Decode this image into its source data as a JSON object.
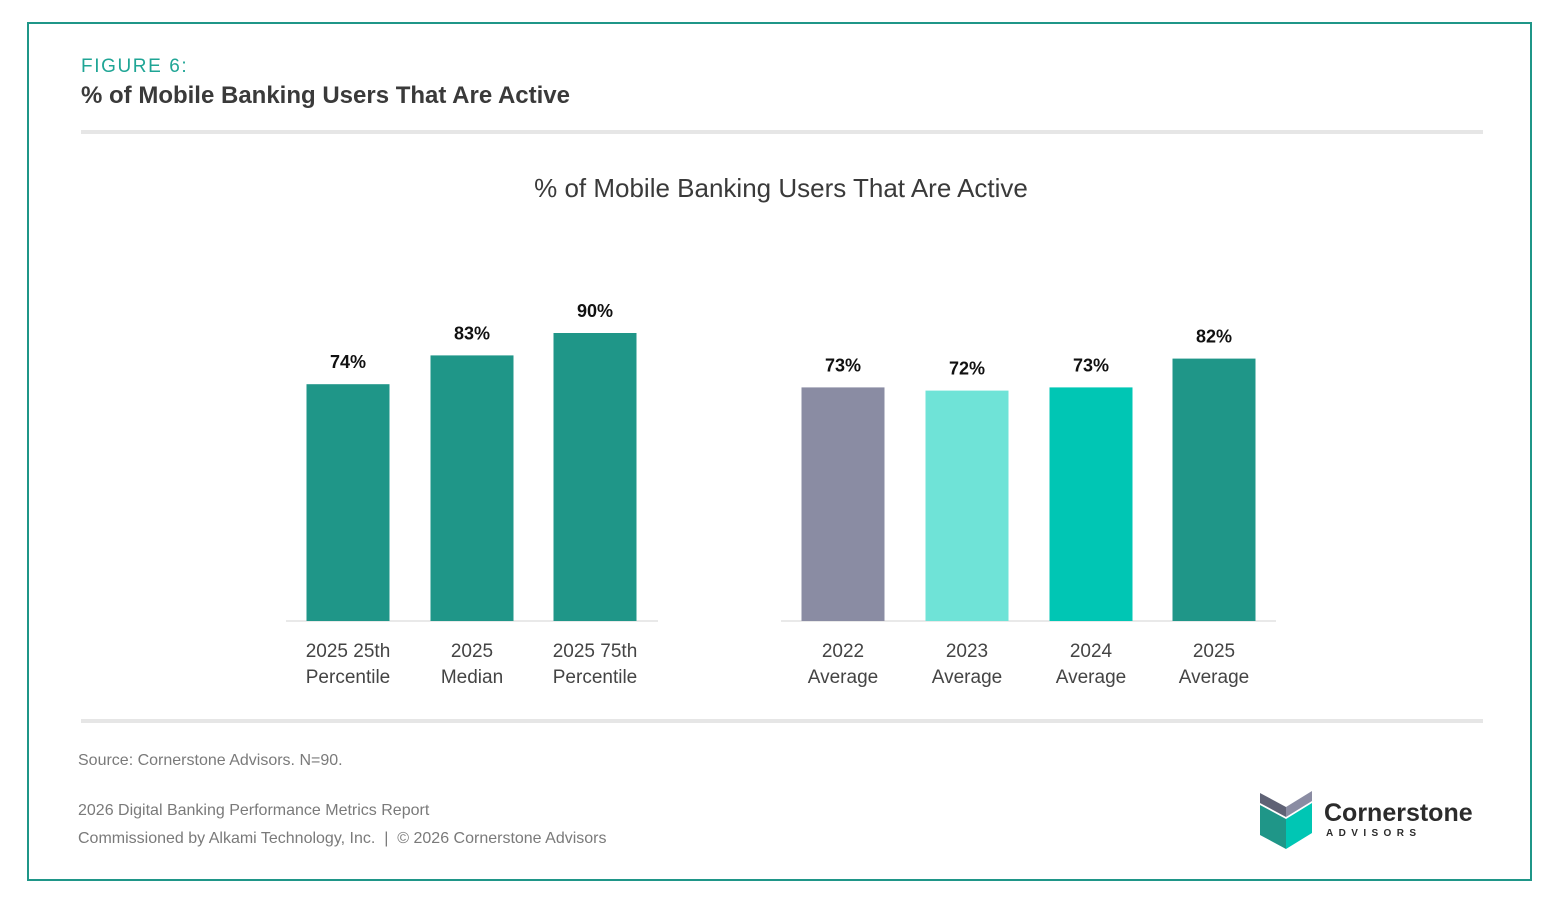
{
  "header": {
    "figure_label": "FIGURE 6:",
    "title": "% of Mobile Banking Users That Are Active"
  },
  "chart_data": {
    "type": "bar",
    "title": "% of Mobile Banking Users That Are Active",
    "xlabel": "",
    "ylabel": "",
    "ylim": [
      0,
      100
    ],
    "grid": false,
    "legend": "none",
    "categories": [
      [
        "2025 25th",
        "Percentile"
      ],
      [
        "2025",
        "Median"
      ],
      [
        "2025 75th",
        "Percentile"
      ],
      [
        "2022",
        "Average"
      ],
      [
        "2023",
        "Average"
      ],
      [
        "2024",
        "Average"
      ],
      [
        "2025",
        "Average"
      ]
    ],
    "values": [
      74,
      83,
      90,
      73,
      72,
      73,
      82
    ],
    "data_labels": [
      "74%",
      "83%",
      "90%",
      "73%",
      "72%",
      "73%",
      "82%"
    ],
    "colors": [
      "#1f9688",
      "#1f9688",
      "#1f9688",
      "#8a8ca3",
      "#6fe3d7",
      "#00c6b4",
      "#1f9688"
    ]
  },
  "footer": {
    "source": "Source: Cornerstone Advisors. N=90.",
    "report": "2026 Digital Banking Performance Metrics Report",
    "commission": "Commissioned by Alkami Technology, Inc.  |  © 2026 Cornerstone Advisors"
  },
  "logo": {
    "name": "Cornerstone",
    "sub": "ADVISORS"
  }
}
